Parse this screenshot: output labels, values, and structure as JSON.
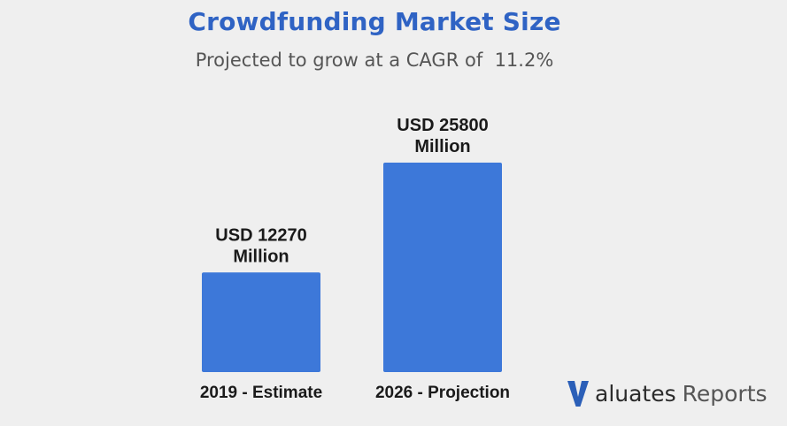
{
  "chart_data": {
    "type": "bar",
    "title": "Crowdfunding Market Size",
    "subtitle": "Projected to grow at a CAGR of  11.2%",
    "categories": [
      "2019 - Estimate",
      "2026 - Projection"
    ],
    "values": [
      12270,
      25800
    ],
    "data_labels": [
      [
        "USD 12270",
        "Million"
      ],
      [
        "USD 25800",
        "Million"
      ]
    ],
    "ylim": [
      0,
      29500
    ],
    "bar_color": "#3d78d9",
    "grid": false,
    "legend": "none"
  },
  "logo": {
    "icon": "valuates-v-logo",
    "brand": "aluates",
    "suffix": "Reports",
    "color": "#2b5fb8"
  }
}
